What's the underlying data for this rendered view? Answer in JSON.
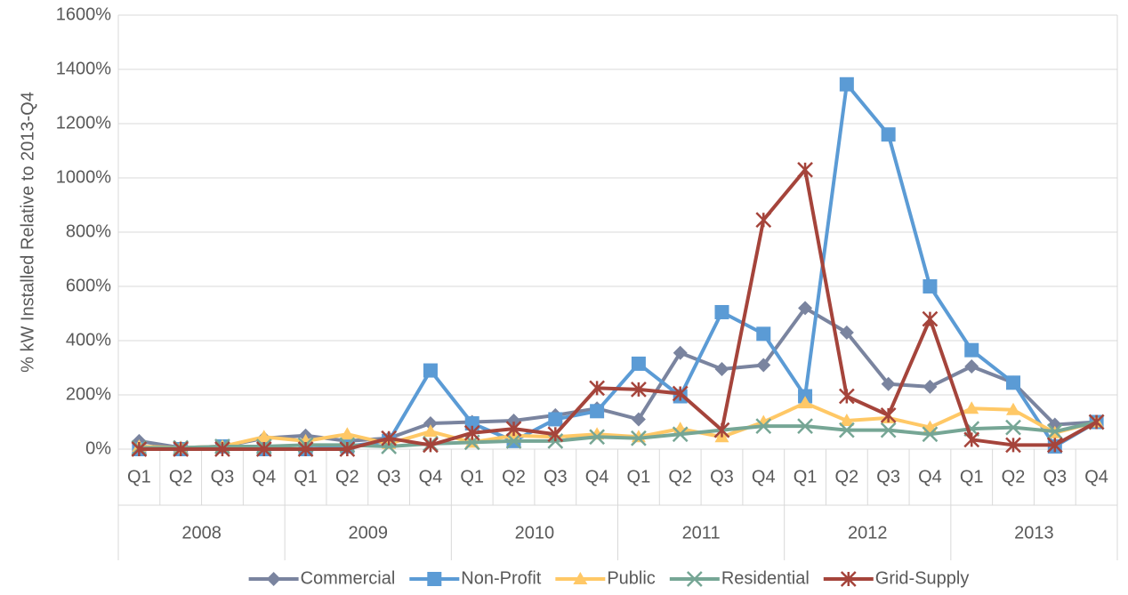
{
  "chart_data": {
    "type": "line",
    "y_label": "% kW Installed Relative to 2013-Q4",
    "categories": [
      "Q1",
      "Q2",
      "Q3",
      "Q4",
      "Q1",
      "Q2",
      "Q3",
      "Q4",
      "Q1",
      "Q2",
      "Q3",
      "Q4",
      "Q1",
      "Q2",
      "Q3",
      "Q4",
      "Q1",
      "Q2",
      "Q3",
      "Q4",
      "Q1",
      "Q2",
      "Q3",
      "Q4"
    ],
    "years": [
      "2008",
      "2009",
      "2010",
      "2011",
      "2012",
      "2013"
    ],
    "ylim": [
      0,
      1600
    ],
    "yticks": [
      {
        "value": 0,
        "label": "0%"
      },
      {
        "value": 200,
        "label": "200%"
      },
      {
        "value": 400,
        "label": "400%"
      },
      {
        "value": 600,
        "label": "600%"
      },
      {
        "value": 800,
        "label": "800%"
      },
      {
        "value": 1000,
        "label": "1000%"
      },
      {
        "value": 1200,
        "label": "1200%"
      },
      {
        "value": 1400,
        "label": "1400%"
      },
      {
        "value": 1600,
        "label": "1600%"
      }
    ],
    "grid": true,
    "legend": "bottom",
    "series": [
      {
        "name": "Commercial",
        "color": "#7a849f",
        "marker": "diamond",
        "values": [
          30,
          5,
          10,
          40,
          50,
          30,
          40,
          95,
          100,
          105,
          125,
          150,
          110,
          355,
          295,
          310,
          520,
          430,
          240,
          230,
          305,
          245,
          90,
          100
        ]
      },
      {
        "name": "Non-Profit",
        "color": "#5b9bd5",
        "marker": "square",
        "values": [
          0,
          0,
          10,
          0,
          0,
          10,
          30,
          290,
          95,
          30,
          110,
          140,
          315,
          195,
          505,
          425,
          195,
          1345,
          1160,
          600,
          365,
          245,
          10,
          100
        ]
      },
      {
        "name": "Public",
        "color": "#ffc866",
        "marker": "triangle",
        "values": [
          10,
          5,
          10,
          45,
          30,
          55,
          20,
          65,
          25,
          50,
          45,
          55,
          45,
          75,
          45,
          100,
          170,
          105,
          115,
          80,
          150,
          145,
          60,
          100
        ]
      },
      {
        "name": "Residential",
        "color": "#76a695",
        "marker": "x",
        "values": [
          5,
          5,
          10,
          10,
          15,
          15,
          10,
          20,
          25,
          30,
          30,
          45,
          40,
          55,
          70,
          85,
          85,
          70,
          70,
          55,
          75,
          80,
          65,
          100
        ]
      },
      {
        "name": "Grid-Supply",
        "color": "#a5443b",
        "marker": "star",
        "values": [
          0,
          0,
          0,
          0,
          0,
          0,
          40,
          15,
          60,
          75,
          55,
          225,
          220,
          205,
          70,
          845,
          1030,
          195,
          125,
          480,
          35,
          15,
          15,
          100
        ]
      }
    ]
  }
}
